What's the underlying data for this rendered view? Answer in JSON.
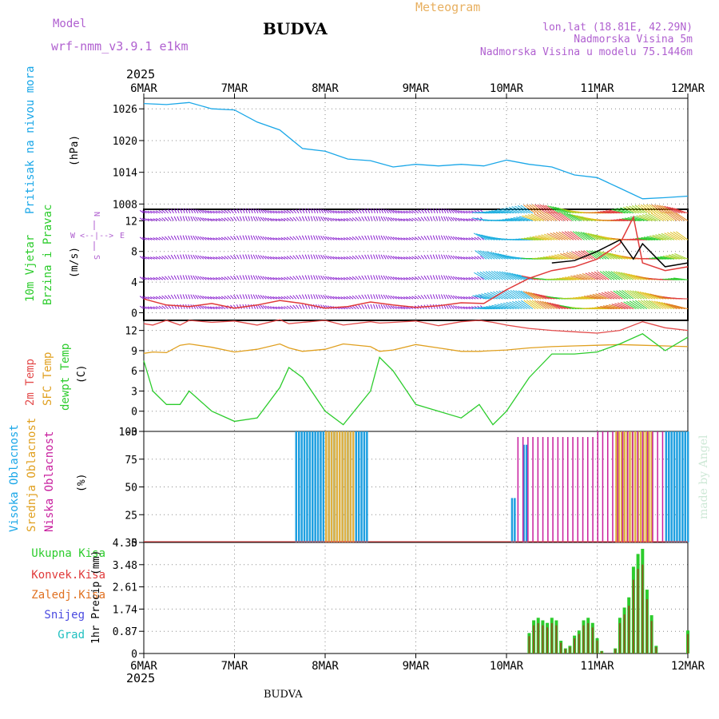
{
  "header": {
    "model_label": "Model",
    "model_name": "wrf-nmm_v3.9.1 e1km",
    "station": "BUDVA",
    "product": "Meteogram",
    "coords": "lon,lat (18.81E, 42.29N)",
    "elevation": "Nadmorska Visina 5m",
    "model_elevation": "Nadmorska Visina u modelu 75.1446m",
    "year": "2025",
    "footer_station": "BUDVA",
    "watermark": "made by Angel"
  },
  "colors": {
    "pressure": "#1aa7e8",
    "wind_speed": "#e03a3a",
    "wind_gust": "#000000",
    "t2m": "#e34b4b",
    "tsfc": "#e0a020",
    "dewpt": "#2ccc2c",
    "cloud_high": "#1e9fe0",
    "cloud_mid": "#e0b040",
    "cloud_low": "#c81e9e",
    "precip_total": "#2ccc2c",
    "precip_conv": "#e03a3a",
    "precip_frozen": "#e07020",
    "snow": "#4a4ae0",
    "hail": "#20c0c0",
    "label_model": "#b060d0",
    "label_product": "#e8b060"
  },
  "time_axis": {
    "ticks": [
      "6MAR",
      "7MAR",
      "8MAR",
      "9MAR",
      "10MAR",
      "11MAR",
      "12MAR"
    ]
  },
  "panels": {
    "pressure": {
      "label": "Pritisak na nivou mora",
      "unit": "(hPa)",
      "ticks": [
        "1008",
        "1014",
        "1020",
        "1026"
      ]
    },
    "wind": {
      "label1": "10m Vjetar",
      "label2": "Brzina i Pravac",
      "unit": "(m/s)",
      "ticks": [
        "0",
        "4",
        "8",
        "12"
      ],
      "compass": {
        "n": "N",
        "s": "S",
        "e": "E",
        "w": "W",
        "arrows_v": "^\n|\nv",
        "arrows_h": "<--|-->"
      }
    },
    "temp": {
      "label1": "2m Temp",
      "label2": "SFC Temp",
      "label3": "dewpt Temp",
      "unit": "(C)",
      "ticks": [
        "-3",
        "0",
        "3",
        "6",
        "9",
        "12"
      ]
    },
    "cloud": {
      "label1": "Visoka Oblacnost",
      "label2": "Srednja Oblacnost",
      "label3": "Niska Oblacnost",
      "unit": "(%)",
      "ticks": [
        "0",
        "25",
        "50",
        "75",
        "100"
      ]
    },
    "precip": {
      "legend": [
        "Ukupna Kisa",
        "Konvek.Kisa",
        "Zaledj.Kisa",
        "Snijeg",
        "Grad"
      ],
      "unit": "1hr Precip (mm)",
      "ticks": [
        "0",
        "0.87",
        "1.74",
        "2.61",
        "3.48",
        "4.35"
      ]
    }
  },
  "chart_data": [
    {
      "type": "line",
      "title": "",
      "ylabel": "Pritisak na nivou mora (hPa)",
      "ylim": [
        1007,
        1028
      ],
      "x": [
        6.0,
        6.25,
        6.5,
        6.75,
        7.0,
        7.25,
        7.5,
        7.75,
        8.0,
        8.25,
        8.5,
        8.75,
        9.0,
        9.25,
        9.5,
        9.75,
        10.0,
        10.25,
        10.5,
        10.75,
        11.0,
        11.25,
        11.5,
        11.75,
        12.0
      ],
      "series": [
        {
          "values": [
            1027,
            1026.8,
            1027.2,
            1026,
            1025.8,
            1023.5,
            1022,
            1018.5,
            1018,
            1016.5,
            1016.2,
            1015,
            1015.5,
            1015.2,
            1015.5,
            1015.2,
            1016.3,
            1015.5,
            1015,
            1013.5,
            1013,
            1011,
            1009,
            1009.2,
            1009.5
          ]
        }
      ]
    },
    {
      "type": "line",
      "title": "",
      "ylabel": "10m Vjetar Brzina i Pravac (m/s)",
      "ylim": [
        -1,
        13.5
      ],
      "x": [
        6.0,
        6.25,
        6.5,
        6.75,
        7.0,
        7.25,
        7.5,
        7.75,
        8.0,
        8.25,
        8.5,
        8.75,
        9.0,
        9.25,
        9.5,
        9.75,
        10.0,
        10.25,
        10.5,
        10.75,
        11.0,
        11.25,
        11.4,
        11.5,
        11.75,
        12.0
      ],
      "series": [
        {
          "values": [
            1.8,
            1.0,
            0.8,
            1.2,
            0.6,
            1.0,
            1.6,
            1.2,
            0.6,
            0.8,
            1.4,
            1.0,
            0.7,
            0.9,
            1.3,
            1.2,
            3.0,
            4.5,
            5.5,
            6.0,
            7.0,
            9.0,
            12.5,
            6.5,
            5.5,
            6.0
          ]
        },
        {
          "values": [
            null,
            null,
            null,
            null,
            null,
            null,
            null,
            null,
            null,
            null,
            null,
            null,
            null,
            null,
            null,
            null,
            null,
            null,
            6.5,
            6.8,
            8.0,
            9.5,
            7.0,
            9.0,
            6.0,
            6.5
          ]
        }
      ]
    },
    {
      "type": "line",
      "title": "",
      "ylabel": "(C)",
      "ylim": [
        -3,
        13.5
      ],
      "x": [
        6.0,
        6.1,
        6.25,
        6.4,
        6.5,
        6.75,
        7.0,
        7.25,
        7.5,
        7.6,
        7.75,
        8.0,
        8.2,
        8.5,
        8.6,
        8.75,
        9.0,
        9.25,
        9.5,
        9.7,
        9.85,
        10.0,
        10.25,
        10.5,
        10.75,
        11.0,
        11.25,
        11.5,
        11.75,
        12.0
      ],
      "series": [
        {
          "values": [
            13,
            12.8,
            13.5,
            12.8,
            13.5,
            13.2,
            13.4,
            12.8,
            13.6,
            13,
            13.2,
            13.5,
            12.8,
            13.3,
            13.1,
            13.2,
            13.4,
            12.7,
            13.3,
            13.5,
            13.2,
            12.8,
            12.3,
            12.0,
            11.8,
            11.6,
            12.0,
            13.3,
            12.4,
            12.0
          ]
        },
        {
          "values": [
            8.6,
            8.8,
            8.7,
            9.8,
            10.0,
            9.5,
            8.8,
            9.2,
            10.0,
            9.4,
            8.9,
            9.2,
            10.0,
            9.6,
            8.9,
            9.1,
            9.9,
            9.4,
            8.9,
            8.9,
            9.0,
            9.1,
            9.4,
            9.6,
            9.7,
            9.8,
            9.9,
            9.8,
            9.7,
            9.6
          ]
        },
        {
          "values": [
            7.5,
            3,
            1,
            1,
            3,
            0,
            -1.5,
            -1,
            3.5,
            6.5,
            5,
            0,
            -2,
            3,
            8,
            6,
            1,
            0,
            -1,
            1,
            -2,
            0,
            5,
            8.5,
            8.5,
            8.8,
            10,
            11.5,
            9,
            11
          ]
        }
      ]
    },
    {
      "type": "bar",
      "title": "",
      "ylabel": "(%)",
      "ylim": [
        0,
        100
      ],
      "note": "Cloud cover percent, hourly bars",
      "series": [
        {
          "name": "Visoka Oblacnost",
          "ranges": [
            [
              7.67,
              8.45,
              100
            ],
            [
              10.05,
              10.1,
              40
            ],
            [
              10.18,
              10.22,
              88
            ],
            [
              11.75,
              12.0,
              100
            ]
          ]
        },
        {
          "name": "Srednja Oblacnost",
          "ranges": [
            [
              8.0,
              8.3,
              100
            ],
            [
              11.2,
              11.6,
              100
            ]
          ]
        },
        {
          "name": "Niska Oblacnost",
          "ranges": [
            [
              10.12,
              11.0,
              95
            ],
            [
              11.0,
              11.75,
              100
            ]
          ]
        }
      ]
    },
    {
      "type": "bar",
      "title": "",
      "ylabel": "1hr Precip (mm)",
      "ylim": [
        0,
        4.35
      ],
      "x": [
        10.25,
        10.3,
        10.35,
        10.4,
        10.45,
        10.5,
        10.55,
        10.6,
        10.65,
        10.7,
        10.75,
        10.8,
        10.85,
        10.9,
        10.95,
        11.0,
        11.05,
        11.2,
        11.25,
        11.3,
        11.35,
        11.4,
        11.45,
        11.5,
        11.55,
        11.6,
        11.65,
        12.0
      ],
      "values": [
        0.8,
        1.3,
        1.4,
        1.3,
        1.2,
        1.4,
        1.3,
        0.5,
        0.2,
        0.3,
        0.7,
        0.9,
        1.3,
        1.4,
        1.2,
        0.6,
        0.1,
        0.2,
        1.4,
        1.8,
        2.2,
        3.4,
        3.9,
        4.1,
        2.5,
        1.5,
        0.3,
        0.9
      ]
    }
  ]
}
